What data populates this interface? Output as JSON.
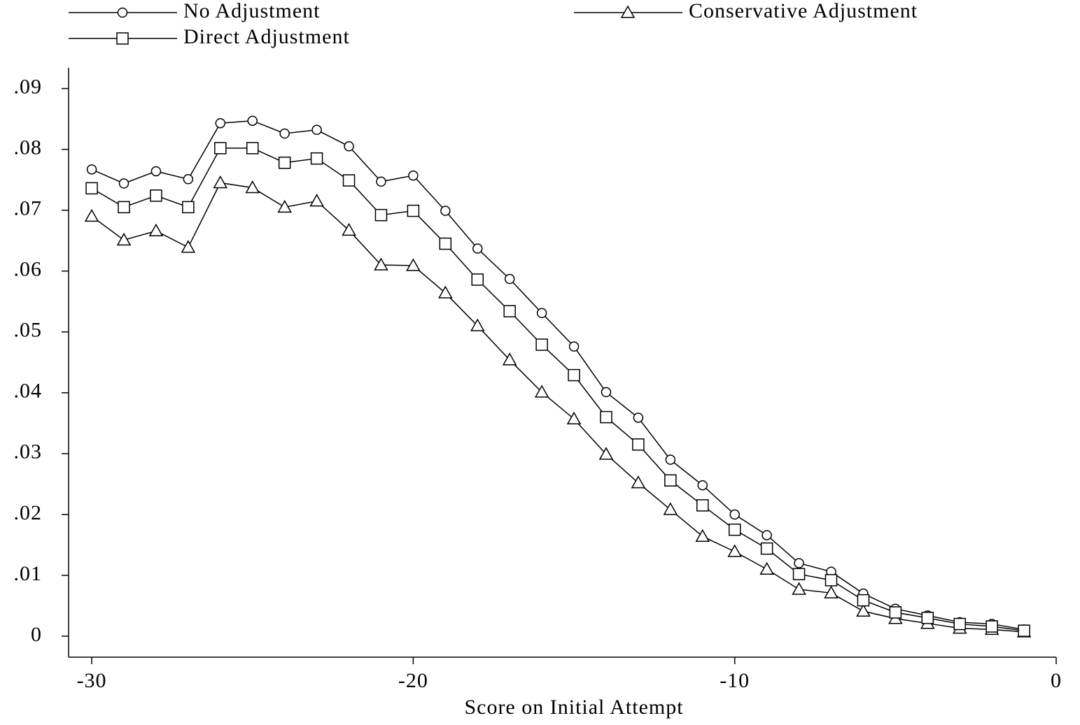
{
  "chart_data": {
    "type": "line",
    "xlabel": "Score on Initial Attempt",
    "x": [
      -30,
      -29,
      -28,
      -27,
      -26,
      -25,
      -24,
      -23,
      -22,
      -21,
      -20,
      -19,
      -18,
      -17,
      -16,
      -15,
      -14,
      -13,
      -12,
      -11,
      -10,
      -9,
      -8,
      -7,
      -6,
      -5,
      -4,
      -3,
      -2,
      -1
    ],
    "series": [
      {
        "name": "No Adjustment",
        "color": "#000000",
        "marker": "circle",
        "values": [
          0.0767,
          0.0744,
          0.0764,
          0.0751,
          0.0843,
          0.0847,
          0.0826,
          0.0832,
          0.0805,
          0.0747,
          0.0757,
          0.0699,
          0.0637,
          0.0587,
          0.0531,
          0.0476,
          0.0401,
          0.0359,
          0.029,
          0.0248,
          0.02,
          0.0166,
          0.012,
          0.0106,
          0.007,
          0.0045,
          0.0034,
          0.0023,
          0.002,
          0.0011
        ]
      },
      {
        "name": "Conservative Adjustment",
        "color": "#000000",
        "marker": "triangle",
        "values": [
          0.069,
          0.0651,
          0.0666,
          0.0639,
          0.0745,
          0.0737,
          0.0705,
          0.0715,
          0.0667,
          0.061,
          0.0609,
          0.0564,
          0.051,
          0.0454,
          0.0401,
          0.0357,
          0.0299,
          0.0252,
          0.0208,
          0.0164,
          0.0139,
          0.011,
          0.0077,
          0.0071,
          0.0041,
          0.0029,
          0.0021,
          0.0013,
          0.0011,
          0.0007
        ]
      },
      {
        "name": "Direct Adjustment",
        "color": "#000000",
        "marker": "square",
        "values": [
          0.0736,
          0.0705,
          0.0724,
          0.0705,
          0.0802,
          0.0802,
          0.0778,
          0.0785,
          0.0749,
          0.0692,
          0.0699,
          0.0645,
          0.0586,
          0.0534,
          0.0479,
          0.0429,
          0.036,
          0.0315,
          0.0256,
          0.0215,
          0.0175,
          0.0144,
          0.0102,
          0.0092,
          0.0059,
          0.0039,
          0.003,
          0.002,
          0.0016,
          0.0009
        ]
      }
    ],
    "xlim": [
      -30.72,
      0
    ],
    "xticks": [
      -30,
      -20,
      -10,
      0
    ],
    "ylim": [
      -0.00345,
      0.0934
    ],
    "yticks": [
      0,
      {
        "value": 0.01,
        "label": ".01"
      },
      {
        "value": 0.02,
        "label": ".02"
      },
      {
        "value": 0.03,
        "label": ".03"
      },
      {
        "value": 0.04,
        "label": ".04"
      },
      {
        "value": 0.05,
        "label": ".05"
      },
      {
        "value": 0.06,
        "label": ".06"
      },
      {
        "value": 0.07,
        "label": ".07"
      },
      {
        "value": 0.08,
        "label": ".08"
      },
      {
        "value": 0.09,
        "label": ".09"
      }
    ],
    "legend": "top",
    "grid": false
  }
}
